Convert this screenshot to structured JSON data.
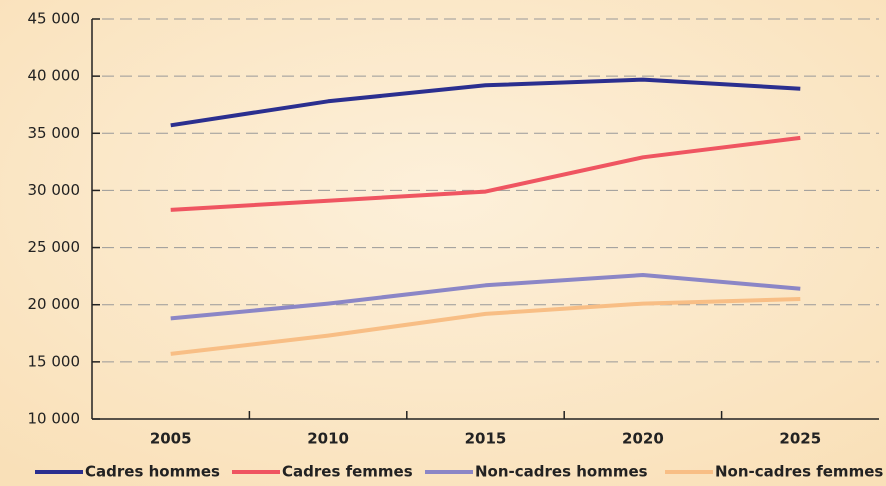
{
  "chart_data": {
    "type": "line",
    "categories": [
      "2005",
      "2010",
      "2015",
      "2020",
      "2025"
    ],
    "series": [
      {
        "name": "Cadres hommes",
        "color": "#2b2f8f",
        "values": [
          35700,
          37800,
          39200,
          39700,
          38900
        ]
      },
      {
        "name": "Cadres femmes",
        "color": "#ef5561",
        "values": [
          28300,
          29100,
          29900,
          32900,
          34600
        ]
      },
      {
        "name": "Non-cadres hommes",
        "color": "#8b86c6",
        "values": [
          18800,
          20100,
          21700,
          22600,
          21400
        ]
      },
      {
        "name": "Non-cadres femmes",
        "color": "#f8be85",
        "values": [
          15700,
          17300,
          19200,
          20100,
          20500
        ]
      }
    ],
    "ylim": [
      10000,
      45000
    ],
    "yticks": [
      {
        "value": 10000,
        "label": "10 000"
      },
      {
        "value": 15000,
        "label": "15 000"
      },
      {
        "value": 20000,
        "label": "20 000"
      },
      {
        "value": 25000,
        "label": "25 000"
      },
      {
        "value": 30000,
        "label": "30 000"
      },
      {
        "value": 35000,
        "label": "35 000"
      },
      {
        "value": 40000,
        "label": "40 000"
      },
      {
        "value": 45000,
        "label": "45 000"
      }
    ],
    "grid": true,
    "legend": "bottom"
  }
}
